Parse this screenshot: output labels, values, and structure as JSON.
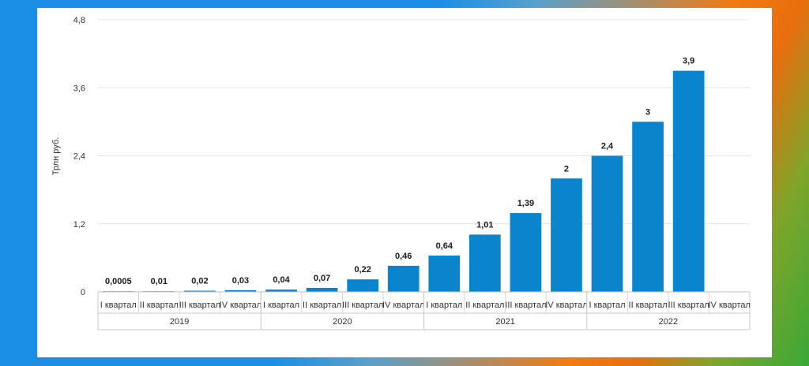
{
  "chart_data": {
    "type": "bar",
    "ylabel": "Трлн руб.",
    "ylim": [
      0,
      4.8
    ],
    "yticks": [
      "0",
      "1,2",
      "2,4",
      "3,6",
      "4,8"
    ],
    "ytick_values": [
      0,
      1.2,
      2.4,
      3.6,
      4.8
    ],
    "grid": true,
    "bar_color": "#0a84cc",
    "categories": [
      "I квартал",
      "II квартал",
      "III квартал",
      "IV квартал",
      "I квартал",
      "II квартал",
      "III квартал",
      "IV квартал",
      "I квартал",
      "II квартал",
      "III квартал",
      "IV квартал",
      "I квартал",
      "II квартал",
      "III квартал",
      "IV квартал"
    ],
    "groups": [
      "2019",
      "2020",
      "2021",
      "2022"
    ],
    "values": [
      0.0005,
      0.01,
      0.02,
      0.03,
      0.04,
      0.07,
      0.22,
      0.46,
      0.64,
      1.01,
      1.39,
      2,
      2.4,
      3,
      3.9,
      null
    ],
    "value_labels": [
      "0,0005",
      "0,01",
      "0,02",
      "0,03",
      "0,04",
      "0,07",
      "0,22",
      "0,46",
      "0,64",
      "1,01",
      "1,39",
      "2",
      "2,4",
      "3",
      "3,9",
      ""
    ]
  }
}
